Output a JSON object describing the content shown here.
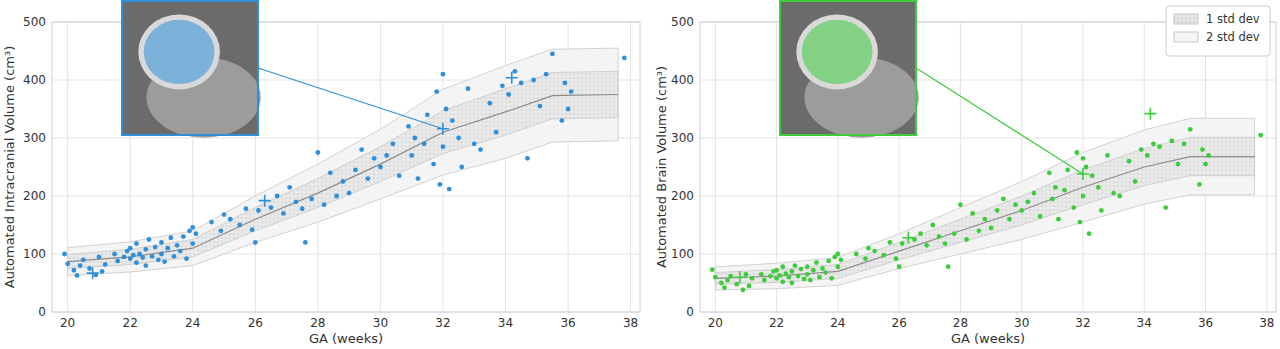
{
  "chart_data": [
    {
      "type": "scatter",
      "y_label": "Automated Intracranial Volume (cm³)",
      "x_label": "GA (weeks)",
      "xlim": [
        19.5,
        38.3
      ],
      "ylim": [
        0,
        500
      ],
      "xticks": [
        20,
        22,
        24,
        26,
        28,
        30,
        32,
        34,
        36,
        38
      ],
      "yticks": [
        0,
        100,
        200,
        300,
        400,
        500
      ],
      "grid": true,
      "color": "#2f8fdb",
      "marker": "circle",
      "x": [
        19.9,
        20.0,
        20.2,
        20.3,
        20.4,
        20.5,
        20.7,
        20.9,
        21.0,
        21.1,
        21.2,
        21.5,
        21.6,
        21.8,
        21.9,
        22.0,
        22.0,
        22.1,
        22.2,
        22.2,
        22.3,
        22.4,
        22.5,
        22.5,
        22.6,
        22.7,
        22.8,
        22.9,
        23.0,
        23.0,
        23.1,
        23.2,
        23.3,
        23.4,
        23.5,
        23.6,
        23.7,
        23.8,
        23.9,
        24.0,
        24.0,
        24.1,
        24.6,
        24.9,
        25.0,
        25.2,
        25.5,
        25.7,
        25.9,
        26.0,
        26.1,
        26.5,
        26.7,
        26.9,
        27.1,
        27.3,
        27.5,
        27.6,
        27.8,
        28.0,
        28.2,
        28.4,
        28.6,
        28.8,
        29.0,
        29.2,
        29.4,
        29.6,
        29.8,
        30.0,
        30.2,
        30.4,
        30.6,
        30.9,
        31.0,
        31.1,
        31.2,
        31.4,
        31.5,
        31.7,
        31.8,
        31.9,
        32.0,
        32.0,
        32.1,
        32.2,
        32.3,
        32.5,
        32.6,
        32.8,
        33.0,
        33.2,
        33.5,
        33.7,
        33.9,
        34.1,
        34.3,
        34.5,
        34.7,
        34.9,
        35.1,
        35.3,
        35.5,
        35.8,
        35.9,
        36.0,
        36.1,
        37.8
      ],
      "values": [
        100,
        83,
        72,
        63,
        80,
        90,
        75,
        64,
        95,
        70,
        82,
        100,
        88,
        95,
        105,
        92,
        110,
        98,
        85,
        118,
        100,
        94,
        108,
        80,
        125,
        96,
        112,
        90,
        120,
        100,
        87,
        110,
        128,
        96,
        115,
        105,
        130,
        92,
        140,
        118,
        146,
        135,
        155,
        140,
        168,
        160,
        150,
        178,
        142,
        120,
        175,
        180,
        200,
        170,
        215,
        190,
        178,
        120,
        195,
        275,
        185,
        240,
        200,
        225,
        205,
        245,
        280,
        230,
        265,
        250,
        270,
        290,
        235,
        320,
        270,
        300,
        230,
        290,
        340,
        255,
        380,
        220,
        410,
        285,
        350,
        212,
        330,
        300,
        250,
        385,
        290,
        280,
        360,
        310,
        390,
        375,
        415,
        395,
        265,
        400,
        355,
        410,
        445,
        330,
        395,
        350,
        380,
        438
      ],
      "highlighted": {
        "x": [
          20.8,
          26.3,
          32.0,
          34.2
        ],
        "values": [
          67,
          192,
          316,
          404
        ]
      },
      "band_x": [
        20,
        22,
        24,
        26,
        28,
        30,
        32,
        34,
        35.5,
        37.6
      ],
      "mean": [
        87,
        95,
        110,
        160,
        205,
        255,
        310,
        345,
        373,
        375
      ],
      "bands": [
        {
          "lower": [
            75,
            82,
            95,
            140,
            180,
            225,
            273,
            305,
            333,
            335
          ],
          "upper": [
            99,
            108,
            125,
            180,
            230,
            285,
            347,
            385,
            413,
            415
          ]
        },
        {
          "lower": [
            63,
            69,
            80,
            120,
            155,
            195,
            236,
            265,
            293,
            295
          ],
          "upper": [
            111,
            121,
            140,
            200,
            255,
            315,
            384,
            425,
            453,
            455
          ]
        }
      ]
    },
    {
      "type": "scatter",
      "y_label": "Automated Brain Volume (cm³)",
      "x_label": "GA (weeks)",
      "xlim": [
        19.5,
        38.3
      ],
      "ylim": [
        0,
        500
      ],
      "xticks": [
        20,
        22,
        24,
        26,
        28,
        30,
        32,
        34,
        36,
        38
      ],
      "yticks": [
        0,
        100,
        200,
        300,
        400,
        500
      ],
      "grid": true,
      "color": "#3dcc3d",
      "marker": "circle",
      "legend": "upper right",
      "x": [
        19.9,
        20.0,
        20.2,
        20.3,
        20.4,
        20.5,
        20.7,
        20.9,
        21.0,
        21.1,
        21.2,
        21.5,
        21.6,
        21.8,
        21.9,
        22.0,
        22.0,
        22.1,
        22.2,
        22.2,
        22.3,
        22.4,
        22.5,
        22.5,
        22.6,
        22.7,
        22.8,
        22.9,
        23.0,
        23.0,
        23.1,
        23.2,
        23.3,
        23.4,
        23.5,
        23.6,
        23.7,
        23.8,
        23.9,
        24.0,
        24.0,
        24.1,
        24.6,
        24.9,
        25.0,
        25.2,
        25.5,
        25.7,
        25.9,
        26.0,
        26.1,
        26.5,
        26.7,
        26.9,
        27.1,
        27.3,
        27.5,
        27.6,
        27.8,
        28.0,
        28.2,
        28.4,
        28.6,
        28.8,
        29.0,
        29.2,
        29.4,
        29.6,
        29.8,
        30.0,
        30.2,
        30.4,
        30.6,
        30.9,
        31.0,
        31.1,
        31.2,
        31.4,
        31.5,
        31.7,
        31.8,
        31.9,
        32.0,
        32.0,
        32.1,
        32.2,
        32.3,
        32.5,
        32.6,
        32.8,
        33.0,
        33.2,
        33.5,
        33.7,
        33.9,
        34.1,
        34.3,
        34.5,
        34.7,
        34.9,
        35.1,
        35.3,
        35.5,
        35.8,
        35.9,
        36.0,
        36.1,
        37.8
      ],
      "values": [
        73,
        60,
        50,
        42,
        55,
        62,
        48,
        38,
        65,
        45,
        58,
        65,
        55,
        62,
        70,
        58,
        72,
        63,
        52,
        78,
        66,
        60,
        70,
        50,
        80,
        62,
        74,
        57,
        78,
        65,
        55,
        72,
        85,
        60,
        75,
        68,
        88,
        58,
        95,
        78,
        100,
        90,
        100,
        92,
        110,
        105,
        98,
        120,
        92,
        78,
        118,
        125,
        135,
        115,
        150,
        130,
        118,
        78,
        135,
        185,
        125,
        170,
        140,
        160,
        145,
        175,
        195,
        160,
        185,
        175,
        190,
        205,
        165,
        240,
        195,
        215,
        160,
        210,
        245,
        180,
        275,
        155,
        265,
        200,
        250,
        135,
        235,
        215,
        175,
        270,
        205,
        200,
        260,
        225,
        280,
        270,
        290,
        285,
        180,
        295,
        255,
        290,
        315,
        220,
        280,
        255,
        270,
        305
      ],
      "highlighted": {
        "x": [
          20.8,
          26.3,
          32.0,
          34.2
        ],
        "values": [
          60,
          128,
          238,
          342
        ]
      },
      "band_x": [
        20,
        22,
        24,
        26,
        28,
        30,
        32,
        34,
        35.5,
        37.6
      ],
      "mean": [
        58,
        62,
        70,
        105,
        140,
        175,
        215,
        250,
        268,
        268
      ],
      "bands": [
        {
          "name": "1 std dev",
          "lower": [
            48,
            51,
            58,
            90,
            120,
            150,
            185,
            218,
            235,
            235
          ],
          "upper": [
            68,
            73,
            82,
            120,
            160,
            200,
            245,
            282,
            301,
            301
          ]
        },
        {
          "name": "2 std dev",
          "lower": [
            38,
            40,
            46,
            75,
            100,
            125,
            155,
            186,
            202,
            202
          ],
          "upper": [
            78,
            84,
            94,
            135,
            180,
            225,
            275,
            314,
            334,
            334
          ]
        }
      ]
    }
  ]
}
